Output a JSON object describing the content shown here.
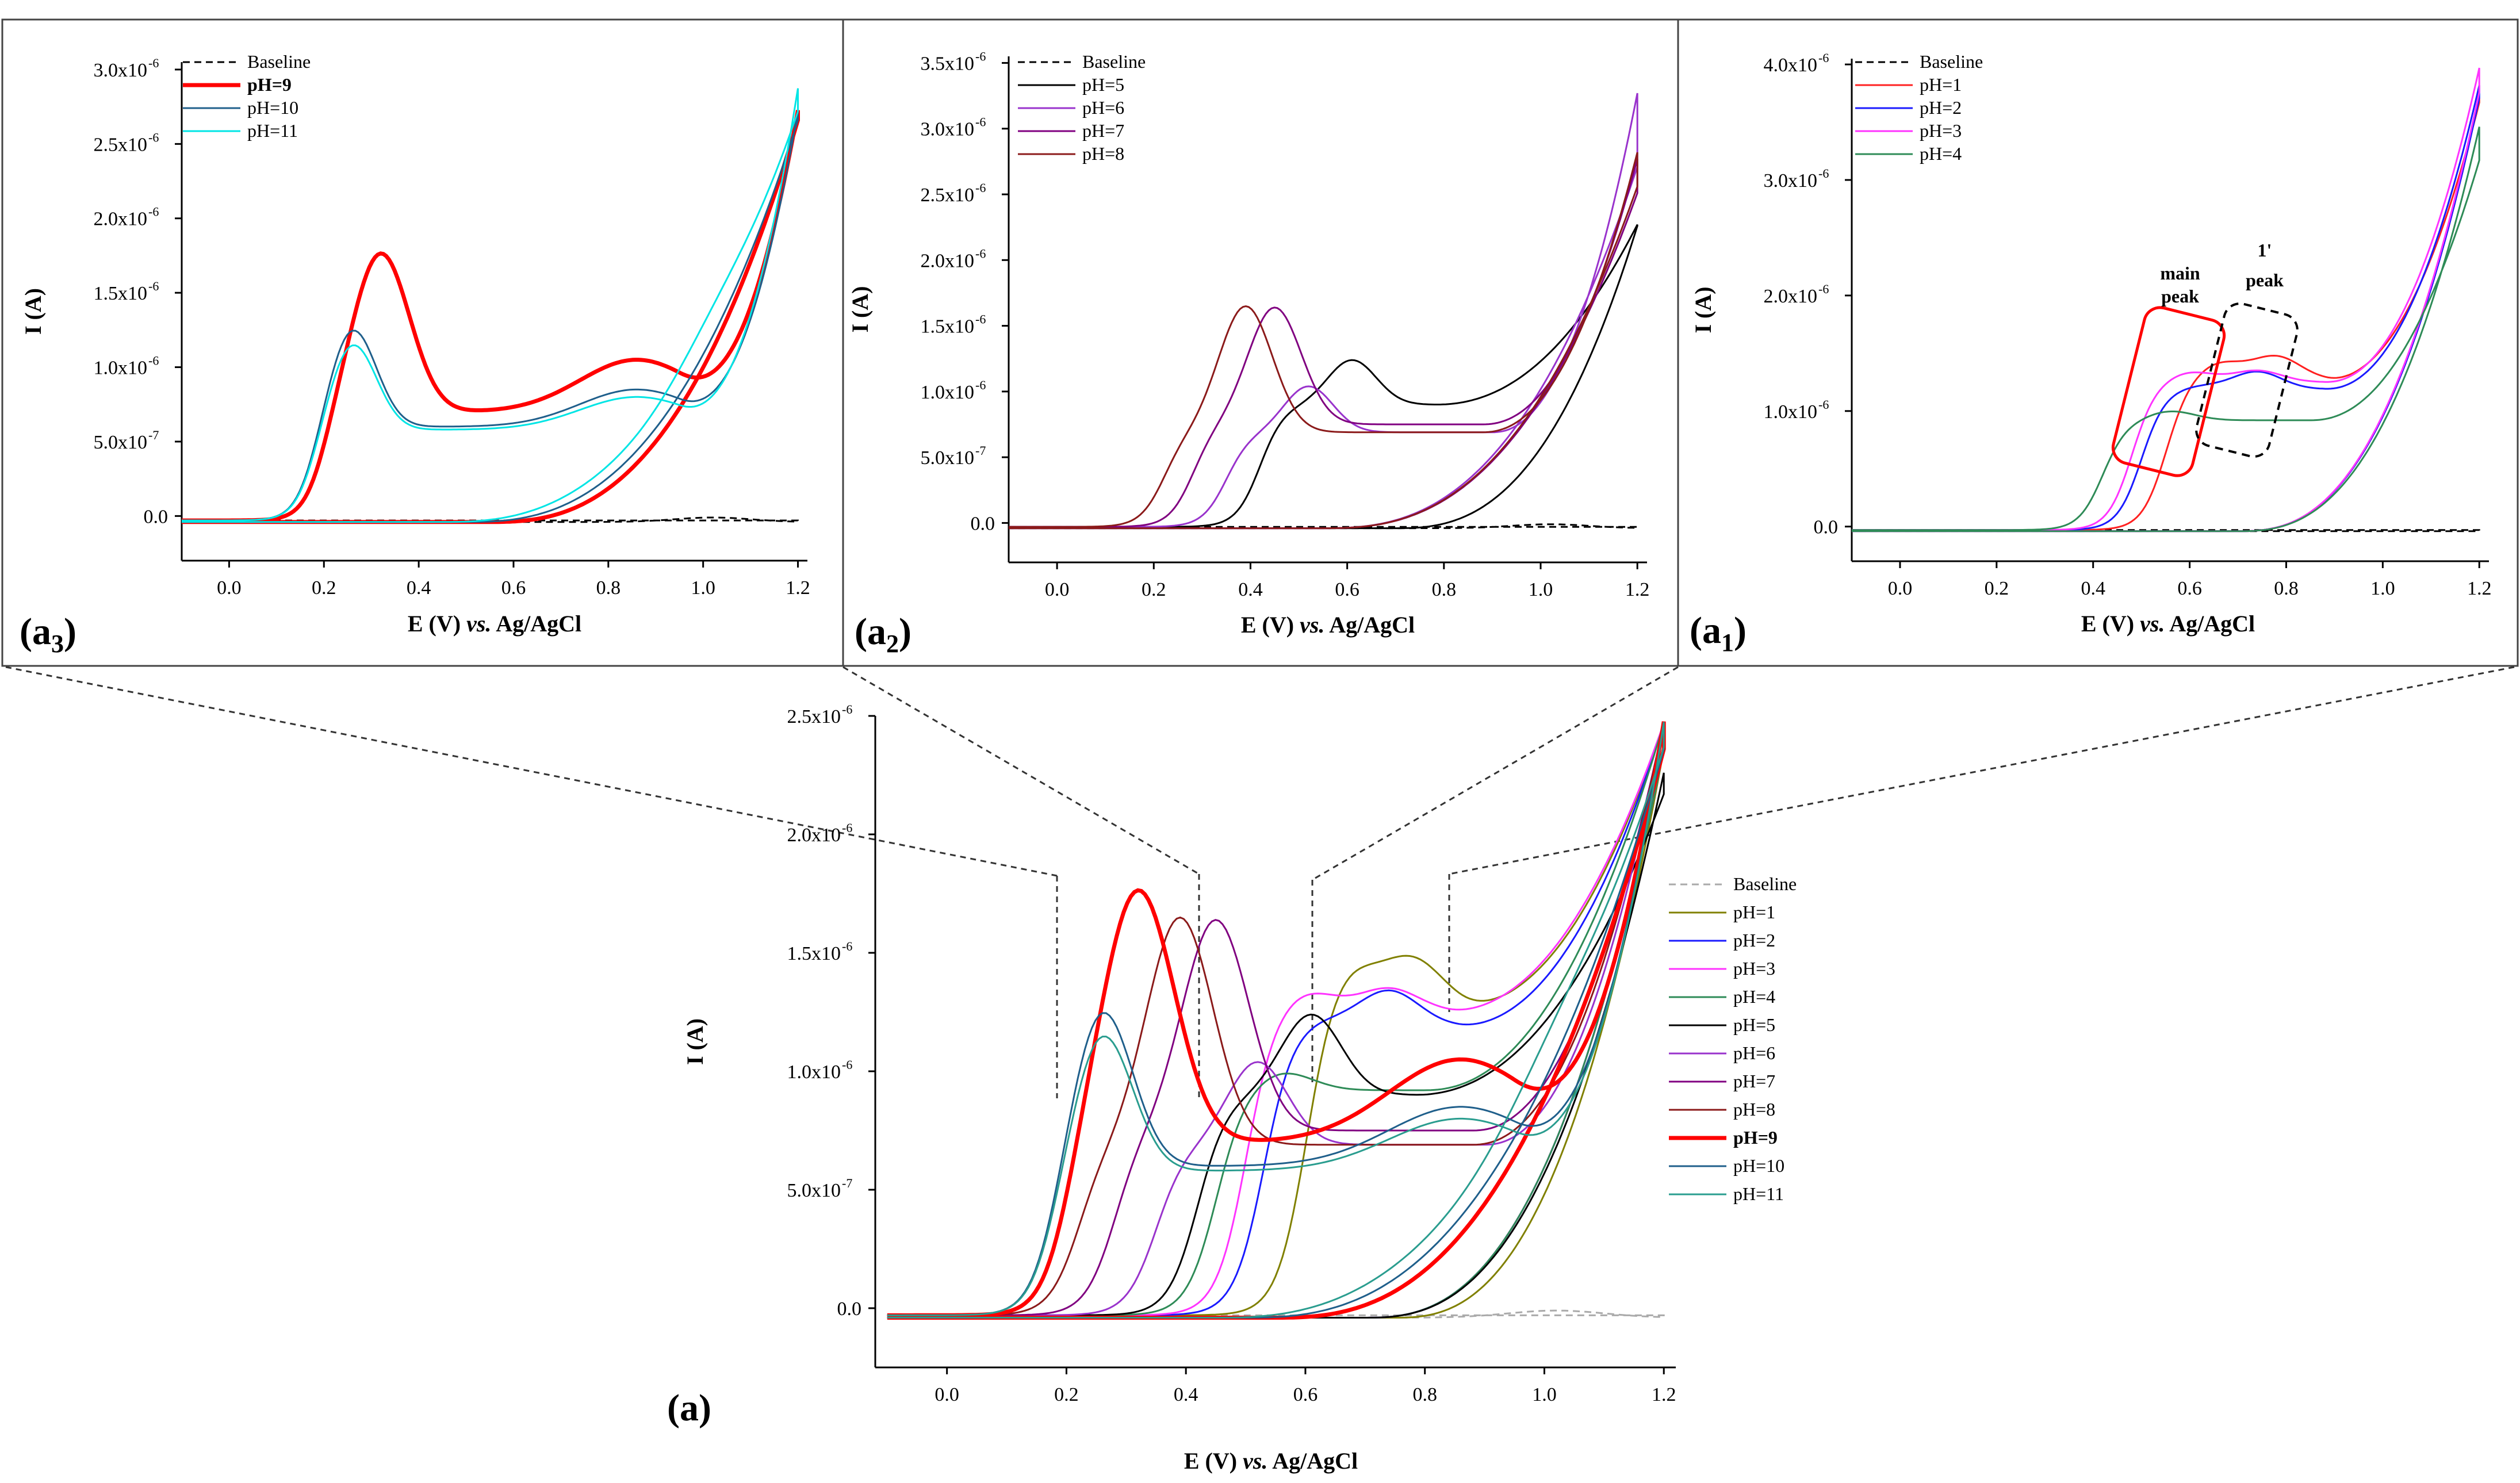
{
  "chart_data": [
    {
      "id": "a3",
      "type": "line",
      "panel_label": "(a",
      "panel_sub": "3",
      "xlabel_main": "E (V) ",
      "xlabel_vs": "vs.",
      "xlabel_tail": " Ag/AgCl",
      "ylabel": "I (A)",
      "xlim": [
        -0.1,
        1.22
      ],
      "ylim": [
        -3e-07,
        3.05e-06
      ],
      "xticks": [
        0.0,
        0.2,
        0.4,
        0.6,
        0.8,
        1.0,
        1.2
      ],
      "xticklabels": [
        "0.0",
        "0.2",
        "0.4",
        "0.6",
        "0.8",
        "1.0",
        "1.2"
      ],
      "yticks": [
        0.0,
        5e-07,
        1e-06,
        1.5e-06,
        2e-06,
        2.5e-06,
        3e-06
      ],
      "ytick_mant": [
        "0.0",
        "5.0x10",
        "1.0x10",
        "1.5x10",
        "2.0x10",
        "2.5x10",
        "3.0x10"
      ],
      "ytick_exp": [
        "",
        "-7",
        "-6",
        "-6",
        "-6",
        "-6",
        "-6"
      ],
      "legend": [
        "Baseline",
        "pH=9",
        "pH=10",
        "pH=11"
      ],
      "series": [
        {
          "name": "Baseline",
          "color": "#000000",
          "dash": true,
          "bold": false,
          "ox": 0.0,
          "peaks": [],
          "anodic_base": 0.0,
          "onset": 1.4,
          "tail_end": 3e-08,
          "cath_end": 3e-08,
          "bump": 3e-08,
          "cath_onset": 1.4
        },
        {
          "name": "pH=9",
          "color": "#ff0000",
          "dash": false,
          "bold": true,
          "ox": 0.2,
          "peaks": [
            [
              0.32,
              1.8e-06,
              0.06
            ],
            [
              0.86,
              3.5e-07,
              0.12
            ]
          ],
          "anodic_base": 7.3e-07,
          "onset": 0.95,
          "tail_end": 2.75e-06,
          "cath_end": 2.7e-06,
          "bump": 0.0,
          "cath_onset": 0.55
        },
        {
          "name": "pH=10",
          "color": "#1f5f8b",
          "dash": false,
          "bold": false,
          "ox": 0.18,
          "peaks": [
            [
              0.26,
              1.3e-06,
              0.05
            ],
            [
              0.86,
              2.5e-07,
              0.12
            ]
          ],
          "anodic_base": 6.3e-07,
          "onset": 0.95,
          "tail_end": 2.75e-06,
          "cath_end": 2.7e-06,
          "bump": 0.0,
          "cath_onset": 0.5
        },
        {
          "name": "pH=11",
          "color": "#00e5e5",
          "dash": false,
          "bold": false,
          "ox": 0.18,
          "peaks": [
            [
              0.26,
              1.2e-06,
              0.05
            ],
            [
              0.86,
              2.2e-07,
              0.12
            ]
          ],
          "anodic_base": 6.1e-07,
          "onset": 0.95,
          "tail_end": 2.9e-06,
          "cath_end": 2.75e-06,
          "bump": 1e-07,
          "cath_onset": 0.45
        }
      ]
    },
    {
      "id": "a2",
      "type": "line",
      "panel_label": "(a",
      "panel_sub": "2",
      "xlabel_main": "E (V) ",
      "xlabel_vs": "vs.",
      "xlabel_tail": " Ag/AgCl",
      "ylabel": "I (A)",
      "xlim": [
        -0.1,
        1.22
      ],
      "ylim": [
        -3e-07,
        3.55e-06
      ],
      "xticks": [
        0.0,
        0.2,
        0.4,
        0.6,
        0.8,
        1.0,
        1.2
      ],
      "xticklabels": [
        "0.0",
        "0.2",
        "0.4",
        "0.6",
        "0.8",
        "1.0",
        "1.2"
      ],
      "yticks": [
        0.0,
        5e-07,
        1e-06,
        1.5e-06,
        2e-06,
        2.5e-06,
        3e-06,
        3.5e-06
      ],
      "ytick_mant": [
        "0.0",
        "5.0x10",
        "1.0x10",
        "1.5x10",
        "2.0x10",
        "2.5x10",
        "3.0x10",
        "3.5x10"
      ],
      "ytick_exp": [
        "",
        "-7",
        "-6",
        "-6",
        "-6",
        "-6",
        "-6",
        "-6"
      ],
      "legend": [
        "Baseline",
        "pH=5",
        "pH=6",
        "pH=7",
        "pH=8"
      ],
      "series": [
        {
          "name": "Baseline",
          "color": "#000000",
          "dash": true,
          "bold": false,
          "ox": 0.0,
          "peaks": [],
          "anodic_base": 0.0,
          "onset": 1.4,
          "tail_end": 3e-08,
          "cath_end": 3e-08,
          "bump": 3e-08,
          "cath_onset": 1.4
        },
        {
          "name": "pH=5",
          "color": "#000000",
          "dash": false,
          "bold": false,
          "ox": 0.42,
          "peaks": [
            [
              0.61,
              1.27e-06,
              0.05
            ]
          ],
          "anodic_base": 9.3e-07,
          "onset": 0.78,
          "tail_end": 2.3e-06,
          "cath_end": 2.3e-06,
          "bump": 0.0,
          "cath_onset": 0.7
        },
        {
          "name": "pH=6",
          "color": "#9933cc",
          "dash": false,
          "bold": false,
          "ox": 0.35,
          "peaks": [
            [
              0.52,
              1.07e-06,
              0.05
            ]
          ],
          "anodic_base": 7.2e-07,
          "onset": 0.9,
          "tail_end": 3.3e-06,
          "cath_end": 2.75e-06,
          "bump": 0.0,
          "cath_onset": 0.55
        },
        {
          "name": "pH=7",
          "color": "#800080",
          "dash": false,
          "bold": false,
          "ox": 0.28,
          "peaks": [
            [
              0.45,
              1.67e-06,
              0.055
            ]
          ],
          "anodic_base": 7.8e-07,
          "onset": 0.88,
          "tail_end": 2.8e-06,
          "cath_end": 2.55e-06,
          "bump": 0.0,
          "cath_onset": 0.55
        },
        {
          "name": "pH=8",
          "color": "#8b1a1a",
          "dash": false,
          "bold": false,
          "ox": 0.22,
          "peaks": [
            [
              0.39,
              1.68e-06,
              0.055
            ]
          ],
          "anodic_base": 7.2e-07,
          "onset": 0.88,
          "tail_end": 2.85e-06,
          "cath_end": 2.6e-06,
          "bump": 0.0,
          "cath_onset": 0.55
        }
      ]
    },
    {
      "id": "a1",
      "type": "line",
      "panel_label": "(a",
      "panel_sub": "1",
      "xlabel_main": "E (V) ",
      "xlabel_vs": "vs.",
      "xlabel_tail": " Ag/AgCl",
      "ylabel": "I (A)",
      "xlim": [
        -0.1,
        1.22
      ],
      "ylim": [
        -3e-07,
        4.05e-06
      ],
      "xticks": [
        0.0,
        0.2,
        0.4,
        0.6,
        0.8,
        1.0,
        1.2
      ],
      "xticklabels": [
        "0.0",
        "0.2",
        "0.4",
        "0.6",
        "0.8",
        "1.0",
        "1.2"
      ],
      "yticks": [
        0.0,
        1e-06,
        2e-06,
        3e-06,
        4e-06
      ],
      "ytick_mant": [
        "0.0",
        "1.0x10",
        "2.0x10",
        "3.0x10",
        "4.0x10"
      ],
      "ytick_exp": [
        "",
        "-6",
        "-6",
        "-6",
        "-6"
      ],
      "legend": [
        "Baseline",
        "pH=1",
        "pH=2",
        "pH=3",
        "pH=4"
      ],
      "annotations": {
        "main1": "main",
        "main2": "peak",
        "p1a": "1'",
        "p1b": "peak"
      },
      "series": [
        {
          "name": "Baseline",
          "color": "#000000",
          "dash": true,
          "bold": false,
          "ox": 0.0,
          "peaks": [],
          "anodic_base": 0.0,
          "onset": 1.4,
          "tail_end": 3e-08,
          "cath_end": 3e-08,
          "bump": 0.0,
          "cath_onset": 1.4
        },
        {
          "name": "pH=1",
          "color": "#ff2020",
          "dash": false,
          "bold": false,
          "ox": 0.55,
          "peaks": [
            [
              0.66,
              1.45e-06,
              0.05
            ],
            [
              0.78,
              1.5e-06,
              0.05
            ]
          ],
          "anodic_base": 1.3e-06,
          "onset": 0.88,
          "tail_end": 3.7e-06,
          "cath_end": 3.75e-06,
          "bump": 0.0,
          "cath_onset": 0.7
        },
        {
          "name": "pH=2",
          "color": "#1a1aff",
          "dash": false,
          "bold": false,
          "ox": 0.5,
          "peaks": [
            [
              0.62,
              1.25e-06,
              0.05
            ],
            [
              0.74,
              1.37e-06,
              0.05
            ]
          ],
          "anodic_base": 1.22e-06,
          "onset": 0.88,
          "tail_end": 3.85e-06,
          "cath_end": 3.75e-06,
          "bump": 0.0,
          "cath_onset": 0.7
        },
        {
          "name": "pH=3",
          "color": "#ff33ff",
          "dash": false,
          "bold": false,
          "ox": 0.48,
          "peaks": [
            [
              0.6,
              1.37e-06,
              0.05
            ],
            [
              0.74,
              1.38e-06,
              0.05
            ]
          ],
          "anodic_base": 1.28e-06,
          "onset": 0.88,
          "tail_end": 4e-06,
          "cath_end": 3.8e-06,
          "bump": 0.0,
          "cath_onset": 0.7
        },
        {
          "name": "pH=4",
          "color": "#2e8b57",
          "dash": false,
          "bold": false,
          "ox": 0.42,
          "peaks": [
            [
              0.56,
              1.03e-06,
              0.05
            ]
          ],
          "anodic_base": 9.5e-07,
          "onset": 0.85,
          "tail_end": 3.2e-06,
          "cath_end": 3.5e-06,
          "bump": 0.0,
          "cath_onset": 0.7
        }
      ]
    },
    {
      "id": "a",
      "type": "line",
      "panel_label": "(a)",
      "panel_sub": "",
      "xlabel_main": "E (V) ",
      "xlabel_vs": "vs.",
      "xlabel_tail": " Ag/AgCl",
      "ylabel": "I (A)",
      "xlim": [
        -0.12,
        1.22
      ],
      "ylim": [
        -2.5e-07,
        2.5e-06
      ],
      "xticks": [
        0.0,
        0.2,
        0.4,
        0.6,
        0.8,
        1.0,
        1.2
      ],
      "xticklabels": [
        "0.0",
        "0.2",
        "0.4",
        "0.6",
        "0.8",
        "1.0",
        "1.2"
      ],
      "yticks": [
        0.0,
        5e-07,
        1e-06,
        1.5e-06,
        2e-06,
        2.5e-06
      ],
      "ytick_mant": [
        "0.0",
        "5.0x10",
        "1.0x10",
        "1.5x10",
        "2.0x10",
        "2.5x10"
      ],
      "ytick_exp": [
        "",
        "-7",
        "-6",
        "-6",
        "-6",
        "-6"
      ],
      "legend": [
        "Baseline",
        "pH=1",
        "pH=2",
        "pH=3",
        "pH=4",
        "pH=5",
        "pH=6",
        "pH=7",
        "pH=8",
        "pH=9",
        "pH=10",
        "pH=11"
      ],
      "series": [
        {
          "name": "Baseline",
          "color": "#aaaaaa",
          "dash": true,
          "bold": false,
          "ox": 0.0,
          "peaks": [],
          "anodic_base": 0.0,
          "onset": 1.4,
          "tail_end": 3e-08,
          "cath_end": 3e-08,
          "bump": 3e-08,
          "cath_onset": 1.4
        },
        {
          "name": "pH=1",
          "color": "#808000",
          "dash": false,
          "bold": false,
          "ox": 0.6,
          "peaks": [
            [
              0.67,
              1.47e-06,
              0.05
            ],
            [
              0.78,
              1.5e-06,
              0.05
            ]
          ],
          "anodic_base": 1.3e-06,
          "onset": 0.85,
          "tail_end": 2.5e-06,
          "cath_end": 2.4e-06,
          "bump": 0.0,
          "cath_onset": 0.75
        },
        {
          "name": "pH=2",
          "color": "#1a1aff",
          "dash": false,
          "bold": false,
          "ox": 0.53,
          "peaks": [
            [
              0.62,
              1.25e-06,
              0.05
            ],
            [
              0.74,
              1.37e-06,
              0.05
            ]
          ],
          "anodic_base": 1.22e-06,
          "onset": 0.85,
          "tail_end": 2.5e-06,
          "cath_end": 2.4e-06,
          "bump": 0.0,
          "cath_onset": 0.7
        },
        {
          "name": "pH=3",
          "color": "#ff33ff",
          "dash": false,
          "bold": false,
          "ox": 0.5,
          "peaks": [
            [
              0.6,
              1.37e-06,
              0.05
            ],
            [
              0.74,
              1.38e-06,
              0.05
            ]
          ],
          "anodic_base": 1.28e-06,
          "onset": 0.83,
          "tail_end": 2.5e-06,
          "cath_end": 2.4e-06,
          "bump": 0.0,
          "cath_onset": 0.7
        },
        {
          "name": "pH=4",
          "color": "#2e8b57",
          "dash": false,
          "bold": false,
          "ox": 0.45,
          "peaks": [
            [
              0.56,
              1.03e-06,
              0.05
            ]
          ],
          "anodic_base": 9.5e-07,
          "onset": 0.8,
          "tail_end": 2.5e-06,
          "cath_end": 2.4e-06,
          "bump": 0.0,
          "cath_onset": 0.7
        },
        {
          "name": "pH=5",
          "color": "#000000",
          "dash": false,
          "bold": false,
          "ox": 0.42,
          "peaks": [
            [
              0.61,
              1.27e-06,
              0.05
            ]
          ],
          "anodic_base": 9.3e-07,
          "onset": 0.78,
          "tail_end": 2.2e-06,
          "cath_end": 2.3e-06,
          "bump": 0.0,
          "cath_onset": 0.7
        },
        {
          "name": "pH=6",
          "color": "#9933cc",
          "dash": false,
          "bold": false,
          "ox": 0.35,
          "peaks": [
            [
              0.52,
              1.07e-06,
              0.05
            ]
          ],
          "anodic_base": 7.2e-07,
          "onset": 0.9,
          "tail_end": 2.5e-06,
          "cath_end": 2.4e-06,
          "bump": 0.0,
          "cath_onset": 0.55
        },
        {
          "name": "pH=7",
          "color": "#800080",
          "dash": false,
          "bold": false,
          "ox": 0.28,
          "peaks": [
            [
              0.45,
              1.67e-06,
              0.055
            ]
          ],
          "anodic_base": 7.8e-07,
          "onset": 0.88,
          "tail_end": 2.5e-06,
          "cath_end": 2.4e-06,
          "bump": 0.0,
          "cath_onset": 0.55
        },
        {
          "name": "pH=8",
          "color": "#8b1a1a",
          "dash": false,
          "bold": false,
          "ox": 0.22,
          "peaks": [
            [
              0.39,
              1.68e-06,
              0.055
            ]
          ],
          "anodic_base": 7.2e-07,
          "onset": 0.88,
          "tail_end": 2.5e-06,
          "cath_end": 2.4e-06,
          "bump": 0.0,
          "cath_onset": 0.55
        },
        {
          "name": "pH=9",
          "color": "#ff0000",
          "dash": false,
          "bold": true,
          "ox": 0.2,
          "peaks": [
            [
              0.32,
              1.8e-06,
              0.06
            ],
            [
              0.86,
              3.5e-07,
              0.12
            ]
          ],
          "anodic_base": 7.3e-07,
          "onset": 0.95,
          "tail_end": 2.5e-06,
          "cath_end": 2.4e-06,
          "bump": 0.0,
          "cath_onset": 0.55
        },
        {
          "name": "pH=10",
          "color": "#1f5f8b",
          "dash": false,
          "bold": false,
          "ox": 0.18,
          "peaks": [
            [
              0.26,
              1.3e-06,
              0.05
            ],
            [
              0.86,
              2.5e-07,
              0.12
            ]
          ],
          "anodic_base": 6.3e-07,
          "onset": 0.95,
          "tail_end": 2.5e-06,
          "cath_end": 2.4e-06,
          "bump": 0.0,
          "cath_onset": 0.5
        },
        {
          "name": "pH=11",
          "color": "#2a9d8f",
          "dash": false,
          "bold": false,
          "ox": 0.18,
          "peaks": [
            [
              0.26,
              1.2e-06,
              0.05
            ],
            [
              0.86,
              2.2e-07,
              0.12
            ]
          ],
          "anodic_base": 6.1e-07,
          "onset": 0.95,
          "tail_end": 2.5e-06,
          "cath_end": 2.4e-06,
          "bump": 1e-07,
          "cath_onset": 0.45
        }
      ]
    }
  ]
}
